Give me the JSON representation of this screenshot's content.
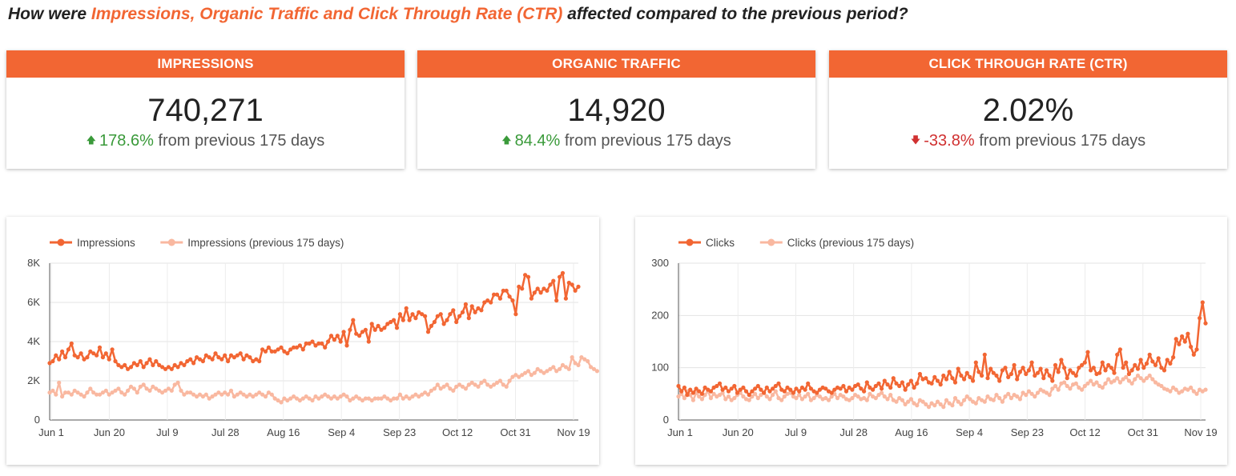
{
  "headline": {
    "prefix": "How were ",
    "highlight": "Impressions, Organic Traffic and Click Through Rate (CTR)",
    "suffix": " affected compared to the previous period?"
  },
  "colors": {
    "accent": "#f26633",
    "accent_light": "#f9b8a0",
    "up": "#3a9a3a",
    "down": "#d03030"
  },
  "scorecards": [
    {
      "title": "IMPRESSIONS",
      "value": "740,271",
      "delta": "178.6%",
      "direction": "up",
      "suffix": "from previous 175 days"
    },
    {
      "title": "ORGANIC TRAFFIC",
      "value": "14,920",
      "delta": "84.4%",
      "direction": "up",
      "suffix": "from previous 175 days"
    },
    {
      "title": "CLICK THROUGH RATE (CTR)",
      "value": "2.02%",
      "delta": "-33.8%",
      "direction": "down",
      "suffix": "from previous 175 days"
    }
  ],
  "chart_data": [
    {
      "type": "line",
      "title": "",
      "xlabel": "",
      "ylabel": "",
      "ylim": [
        0,
        8000
      ],
      "yticks": [
        "0",
        "2K",
        "4K",
        "6K",
        "8K"
      ],
      "ytick_values": [
        0,
        2000,
        4000,
        6000,
        8000
      ],
      "xticks": [
        "Jun 1",
        "Jun 20",
        "Jul 9",
        "Jul 28",
        "Aug 16",
        "Sep 4",
        "Sep 23",
        "Oct 12",
        "Oct 31",
        "Nov 19"
      ],
      "grid": true,
      "legend": "top-left",
      "series": [
        {
          "name": "Impressions",
          "color": "#f26633",
          "values": [
            2900,
            3000,
            3300,
            3100,
            3500,
            3200,
            3600,
            3900,
            3300,
            3200,
            3400,
            3100,
            3200,
            3500,
            3400,
            3300,
            3700,
            3200,
            3400,
            3100,
            3600,
            3000,
            2800,
            2700,
            2800,
            2600,
            2700,
            2900,
            2800,
            3000,
            2700,
            2900,
            3100,
            2800,
            3000,
            2800,
            2700,
            2600,
            2700,
            2600,
            2800,
            2700,
            2900,
            2800,
            3000,
            3100,
            2900,
            3200,
            3100,
            3000,
            3300,
            3200,
            3100,
            3400,
            3200,
            3100,
            3300,
            3000,
            3300,
            3200,
            3300,
            3400,
            3100,
            3300,
            3200,
            3000,
            3100,
            3000,
            3600,
            3500,
            3700,
            3500,
            3500,
            3600,
            3700,
            3500,
            3400,
            3600,
            3700,
            3700,
            3800,
            3600,
            3900,
            3900,
            4000,
            3800,
            3900,
            3900,
            3700,
            4000,
            4300,
            4100,
            4300,
            4000,
            4500,
            3800,
            4600,
            5100,
            4400,
            4300,
            4500,
            4600,
            4000,
            4900,
            4600,
            4800,
            4600,
            4700,
            4900,
            5000,
            5100,
            4700,
            5400,
            5100,
            5700,
            5100,
            5400,
            5200,
            5500,
            5400,
            5300,
            4500,
            4800,
            5000,
            5300,
            5400,
            4900,
            5100,
            5400,
            5600,
            5000,
            5300,
            5500,
            5900,
            5200,
            5800,
            5500,
            5700,
            5600,
            6000,
            6100,
            6000,
            6400,
            6400,
            6200,
            6600,
            6600,
            6300,
            6100,
            5400,
            6800,
            6700,
            7400,
            7300,
            6200,
            6500,
            6700,
            6500,
            6700,
            6600,
            6900,
            7100,
            6100,
            7300,
            7500,
            6200,
            7000,
            6900,
            6600,
            6800
          ]
        },
        {
          "name": "Impressions (previous 175 days)",
          "color": "#f9b8a0",
          "values": [
            1400,
            1500,
            1300,
            1900,
            1200,
            1400,
            1400,
            1300,
            1500,
            1400,
            1300,
            1200,
            1400,
            1600,
            1400,
            1300,
            1300,
            1400,
            1500,
            1300,
            1400,
            1500,
            1600,
            1400,
            1300,
            1500,
            1700,
            1600,
            1400,
            1700,
            1800,
            1600,
            1500,
            1700,
            1600,
            1500,
            1400,
            1500,
            1600,
            1500,
            1800,
            1900,
            1500,
            1300,
            1400,
            1400,
            1300,
            1200,
            1300,
            1200,
            1300,
            1100,
            1200,
            1300,
            1400,
            1300,
            1400,
            1300,
            1500,
            1200,
            1300,
            1400,
            1300,
            1200,
            1300,
            1200,
            1300,
            1400,
            1300,
            1200,
            1400,
            1300,
            1100,
            1000,
            900,
            1100,
            1000,
            1100,
            1200,
            1100,
            1000,
            1100,
            1200,
            1100,
            1000,
            1200,
            1100,
            1200,
            1300,
            1200,
            1100,
            1200,
            1100,
            1200,
            1300,
            1200,
            1000,
            1100,
            1200,
            1100,
            1000,
            1100,
            1100,
            1000,
            1100,
            1100,
            1100,
            1200,
            1100,
            1000,
            1100,
            1100,
            1300,
            1100,
            1200,
            1100,
            1200,
            1300,
            1200,
            1300,
            1400,
            1300,
            1500,
            1600,
            1800,
            1600,
            1700,
            1800,
            1600,
            1500,
            1700,
            1800,
            1700,
            1600,
            1800,
            1900,
            1800,
            1700,
            1900,
            2000,
            1800,
            1700,
            1800,
            1900,
            2000,
            1800,
            1700,
            2000,
            2200,
            2300,
            2200,
            2300,
            2400,
            2500,
            2300,
            2400,
            2600,
            2500,
            2400,
            2500,
            2600,
            2700,
            2500,
            2600,
            2800,
            2700,
            2600,
            3200,
            2900,
            2800,
            3200,
            3100,
            3000,
            2700,
            2600,
            2500
          ]
        }
      ]
    },
    {
      "type": "line",
      "title": "",
      "xlabel": "",
      "ylabel": "",
      "ylim": [
        0,
        300
      ],
      "yticks": [
        "0",
        "100",
        "200",
        "300"
      ],
      "ytick_values": [
        0,
        100,
        200,
        300
      ],
      "xticks": [
        "Jun 1",
        "Jun 20",
        "Jul 9",
        "Jul 28",
        "Aug 16",
        "Sep 4",
        "Sep 23",
        "Oct 12",
        "Oct 31",
        "Nov 19"
      ],
      "grid": true,
      "legend": "top-left",
      "series": [
        {
          "name": "Clicks",
          "color": "#f26633",
          "values": [
            65,
            55,
            62,
            48,
            58,
            52,
            60,
            55,
            50,
            62,
            58,
            55,
            62,
            65,
            70,
            58,
            62,
            55,
            60,
            65,
            52,
            58,
            62,
            55,
            48,
            55,
            60,
            65,
            58,
            52,
            62,
            55,
            60,
            65,
            70,
            58,
            55,
            62,
            58,
            52,
            60,
            55,
            62,
            58,
            70,
            60,
            55,
            52,
            58,
            62,
            60,
            55,
            52,
            58,
            62,
            60,
            65,
            55,
            62,
            58,
            65,
            68,
            60,
            55,
            72,
            62,
            58,
            65,
            70,
            60,
            75,
            68,
            62,
            80,
            70,
            65,
            72,
            58,
            68,
            75,
            62,
            70,
            88,
            78,
            80,
            72,
            70,
            82,
            75,
            68,
            85,
            78,
            92,
            80,
            72,
            98,
            85,
            78,
            90,
            82,
            75,
            110,
            92,
            85,
            125,
            80,
            98,
            90,
            85,
            75,
            95,
            100,
            82,
            88,
            105,
            78,
            92,
            100,
            88,
            95,
            110,
            85,
            90,
            98,
            80,
            95,
            85,
            75,
            105,
            92,
            115,
            100,
            80,
            95,
            90,
            85,
            100,
            105,
            110,
            130,
            95,
            100,
            88,
            90,
            110,
            95,
            105,
            100,
            90,
            125,
            135,
            100,
            110,
            88,
            95,
            105,
            98,
            115,
            100,
            108,
            125,
            112,
            105,
            118,
            100,
            95,
            115,
            108,
            120,
            155,
            145,
            160,
            150,
            165,
            140,
            125,
            135,
            195,
            225,
            185
          ]
        },
        {
          "name": "Clicks (previous 175 days)",
          "color": "#f9b8a0",
          "values": [
            45,
            50,
            42,
            55,
            48,
            38,
            52,
            45,
            40,
            48,
            55,
            42,
            50,
            45,
            48,
            52,
            40,
            45,
            38,
            42,
            48,
            52,
            45,
            40,
            38,
            45,
            50,
            42,
            48,
            52,
            45,
            40,
            48,
            55,
            42,
            38,
            45,
            50,
            52,
            45,
            42,
            48,
            40,
            45,
            50,
            38,
            42,
            48,
            45,
            40,
            42,
            38,
            45,
            50,
            42,
            48,
            45,
            40,
            38,
            42,
            48,
            45,
            40,
            42,
            38,
            50,
            45,
            42,
            48,
            52,
            45,
            40,
            48,
            38,
            35,
            42,
            38,
            30,
            35,
            40,
            32,
            28,
            38,
            35,
            30,
            25,
            32,
            28,
            35,
            30,
            25,
            38,
            32,
            28,
            42,
            35,
            30,
            38,
            45,
            40,
            35,
            32,
            42,
            38,
            35,
            45,
            40,
            38,
            48,
            42,
            35,
            45,
            50,
            42,
            48,
            45,
            40,
            52,
            48,
            55,
            50,
            45,
            52,
            58,
            55,
            52,
            48,
            60,
            65,
            58,
            70,
            72,
            65,
            60,
            68,
            70,
            62,
            58,
            65,
            70,
            75,
            68,
            72,
            65,
            62,
            70,
            78,
            72,
            75,
            80,
            72,
            78,
            82,
            75,
            70,
            78,
            85,
            80,
            75,
            80,
            85,
            78,
            72,
            68,
            65,
            60,
            58,
            55,
            62,
            58,
            52,
            55,
            60,
            58,
            62,
            55,
            50,
            58,
            55,
            58
          ]
        }
      ]
    }
  ]
}
